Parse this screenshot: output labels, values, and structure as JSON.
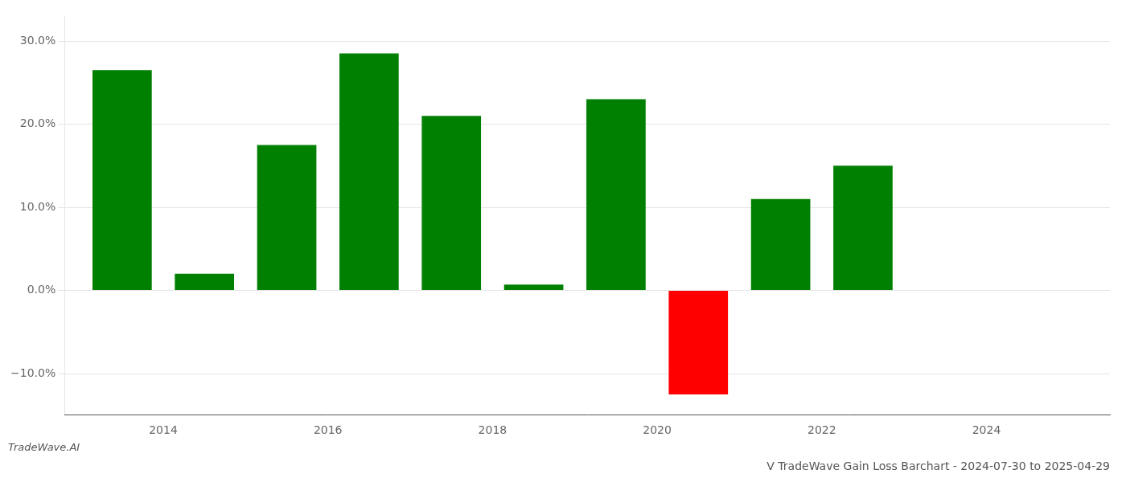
{
  "chart_data": {
    "type": "bar",
    "title": "V TradeWave Gain Loss Barchart - 2024-07-30 to 2025-04-29",
    "annotations": [
      "TradeWave.AI"
    ],
    "x": [
      2013.5,
      2014.5,
      2015.5,
      2016.5,
      2017.5,
      2018.5,
      2019.5,
      2020.5,
      2021.5,
      2022.5
    ],
    "values": [
      26.5,
      2.0,
      17.5,
      28.5,
      21.0,
      0.7,
      23.0,
      -12.5,
      11.0,
      15.0
    ],
    "colors": [
      "#008000",
      "#008000",
      "#008000",
      "#008000",
      "#008000",
      "#008000",
      "#008000",
      "#ff0000",
      "#008000",
      "#008000"
    ],
    "xlim": [
      2012.8,
      2025.5
    ],
    "xticks": [
      2014,
      2016,
      2018,
      2020,
      2022,
      2024
    ],
    "ylim": [
      -15,
      33
    ],
    "yticks": [
      {
        "value": -10,
        "label": "−10.0%"
      },
      {
        "value": 0,
        "label": "0.0%"
      },
      {
        "value": 10,
        "label": "10.0%"
      },
      {
        "value": 20,
        "label": "20.0%"
      },
      {
        "value": 30,
        "label": "30.0%"
      }
    ],
    "grid": true
  }
}
